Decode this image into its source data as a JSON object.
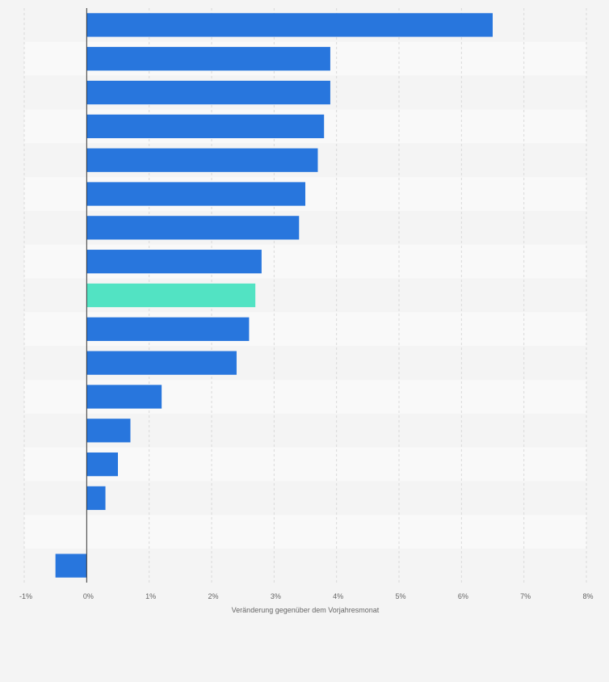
{
  "chart_data": {
    "type": "bar",
    "orientation": "horizontal",
    "xlabel": "Veränderung gegenüber dem Vorjahresmonat",
    "xlim": [
      -1,
      8
    ],
    "xticks": [
      -1,
      0,
      1,
      2,
      3,
      4,
      5,
      6,
      7,
      8
    ],
    "xtick_labels": [
      "-1%",
      "0%",
      "1%",
      "2%",
      "3%",
      "4%",
      "5%",
      "6%",
      "7%",
      "8%"
    ],
    "grid": true,
    "legend": "none",
    "categories": [
      "",
      "",
      "",
      "",
      "",
      "",
      "",
      "",
      "",
      "",
      "",
      "",
      "",
      "",
      "",
      "",
      ""
    ],
    "values": [
      6.5,
      3.9,
      3.9,
      3.8,
      3.7,
      3.5,
      3.4,
      2.8,
      2.7,
      2.6,
      2.4,
      1.2,
      0.7,
      0.5,
      0.3,
      0.0,
      -0.5
    ],
    "highlight_index": 8,
    "colors": {
      "bar": "#2876dd",
      "highlight": "#52e3c3",
      "background": "#f4f4f4",
      "stripe_light": "#f9f9f9",
      "stripe_dark": "#f4f4f4",
      "grid": "#d9d9d9",
      "axis": "#333333",
      "text": "#666666"
    }
  }
}
